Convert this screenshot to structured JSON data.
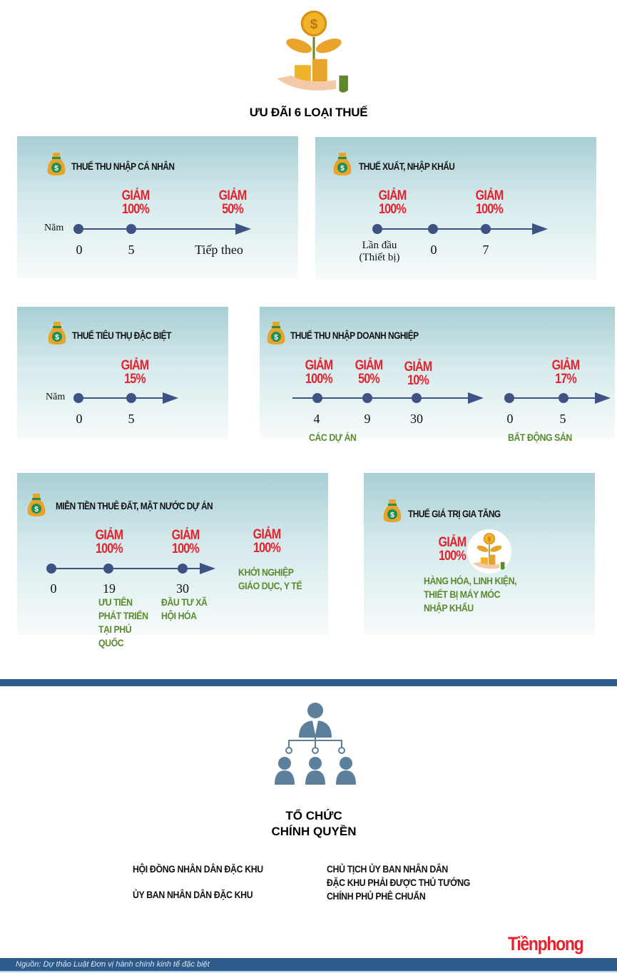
{
  "title": "ƯU ĐÃI 6 LOẠI THUẾ",
  "colors": {
    "accent_red": "#e4232f",
    "timeline": "#3e5384",
    "green": "#5a8a2e",
    "bar": "#2f5b8a"
  },
  "panels": [
    {
      "title": "THUẾ  THU NHẬP CÁ NHÂN",
      "year_label": "Năm",
      "badges": [
        {
          "l1": "GIẢM",
          "l2": "100%"
        },
        {
          "l1": "GIẢM",
          "l2": "50%"
        }
      ],
      "ticks": [
        "0",
        "5",
        "Tiếp theo"
      ]
    },
    {
      "title": "THUẾ  XUẤT, NHẬP KHẨU",
      "badges": [
        {
          "l1": "GIẢM",
          "l2": "100%"
        },
        {
          "l1": "GIẢM",
          "l2": "100%"
        }
      ],
      "ticks": [
        "Lần đầu",
        "(Thiết bị)",
        "0",
        "7"
      ]
    },
    {
      "title": "THUẾ  TIÊU THỤ ĐẶC BIỆT",
      "year_label": "Năm",
      "badges": [
        {
          "l1": "GIẢM",
          "l2": "15%"
        }
      ],
      "ticks": [
        "0",
        "5"
      ]
    },
    {
      "title": "THUẾ THU NHẬP DOANH NGHIỆP",
      "badges": [
        {
          "l1": "GIẢM",
          "l2": "100%"
        },
        {
          "l1": "GIẢM",
          "l2": "50%"
        },
        {
          "l1": "GIẢM",
          "l2": "10%"
        },
        {
          "l1": "GIẢM",
          "l2": "17%"
        }
      ],
      "ticks": [
        "4",
        "9",
        "30",
        "0",
        "5"
      ],
      "groups": [
        "CÁC DỰ ÁN",
        "BẤT ĐỘNG SẢN"
      ]
    },
    {
      "title": "MIỄN TIỀN THUÊ ĐẤT, MẶT NƯỚC DỰ ÁN",
      "badges": [
        {
          "l1": "GIẢM",
          "l2": "100%"
        },
        {
          "l1": "GIẢM",
          "l2": "100%"
        },
        {
          "l1": "GIẢM",
          "l2": "100%"
        }
      ],
      "ticks": [
        "0",
        "19",
        "30"
      ],
      "notes": [
        "ƯU TIÊN\nPHÁT TRIỂN\nTẠI PHÚ\nQUỐC",
        "ĐẦU TƯ XÃ\nHỘI HÓA",
        "KHỞI NGHIỆP\nGIÁO DỤC, Y TẾ"
      ]
    },
    {
      "title": "THUẾ GIÁ TRỊ GIA TĂNG",
      "badges": [
        {
          "l1": "GIẢM",
          "l2": "100%"
        }
      ],
      "note": "HÀNG HÓA, LINH KIỆN,\nTHIẾT BỊ MÁY MÓC\nNHẬP KHẨU"
    }
  ],
  "org": {
    "title_1": "TỔ CHỨC",
    "title_2": "CHÍNH QUYỀN",
    "left": [
      "HỘI ĐỒNG NHÂN DÂN ĐẶC KHU",
      "ỦY BAN NHÂN DÂN ĐẶC KHU"
    ],
    "right": "CHỦ TỊCH ỦY BAN NHÂN DÂN\nĐẶC KHU PHẢI ĐƯỢC THỦ TƯỚNG\nCHÍNH PHỦ PHÊ CHUẨN"
  },
  "logo": "Tiềnphong",
  "source": "Nguồn: Dự thảo Luật Đơn vị hành chính kinh tế đặc biệt"
}
